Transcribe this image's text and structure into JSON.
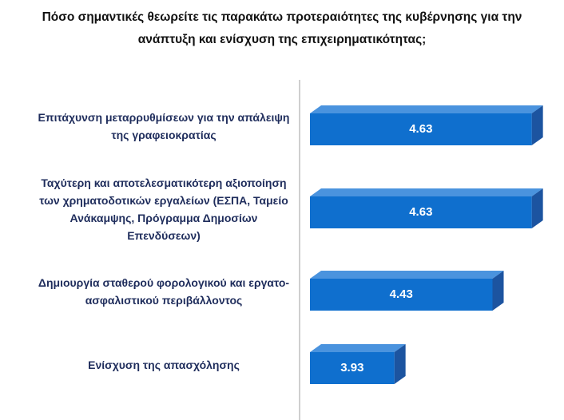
{
  "chart_data": {
    "type": "bar",
    "orientation": "horizontal",
    "title": "Πόσο σημαντικές θεωρείτε τις παρακάτω προτεραιότητες της κυβέρνησης για την ανάπτυξη και ενίσχυση της επιχειρηματικότητας;",
    "categories": [
      "Επιτάχυνση μεταρρυθμίσεων για την απάλειψη της γραφειοκρατίας",
      "Ταχύτερη και αποτελεσματικότερη αξιοποίηση των χρηματοδοτικών εργαλείων (ΕΣΠΑ, Ταμείο Ανάκαμψης, Πρόγραμμα Δημοσίων Επενδύσεων)",
      "Δημιουργία σταθερού φορολογικού και εργατο-ασφαλιστικού περιβάλλοντος",
      "Ενίσχυση της απασχόλησης"
    ],
    "values": [
      4.63,
      4.63,
      4.43,
      3.93
    ],
    "color": "#0f6fce",
    "xlim": [
      3.5,
      4.7
    ]
  }
}
